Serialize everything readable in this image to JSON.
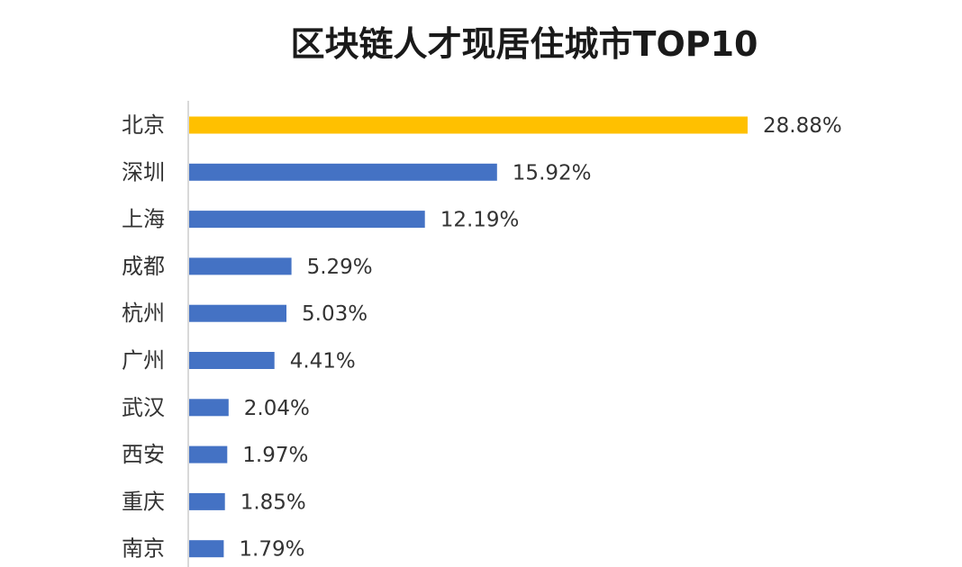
{
  "chart_data": {
    "type": "bar",
    "orientation": "horizontal",
    "title": "区块链人才现居住城市TOP10",
    "categories": [
      "北京",
      "深圳",
      "上海",
      "成都",
      "杭州",
      "广州",
      "武汉",
      "西安",
      "重庆",
      "南京"
    ],
    "values": [
      28.88,
      15.92,
      12.19,
      5.29,
      5.03,
      4.41,
      2.04,
      1.97,
      1.85,
      1.79
    ],
    "value_labels": [
      "28.88%",
      "15.92%",
      "12.19%",
      "5.29%",
      "5.03%",
      "4.41%",
      "2.04%",
      "1.97%",
      "1.85%",
      "1.79%"
    ],
    "xlim": [
      0,
      28.88
    ],
    "grid": false,
    "legend": "none",
    "colors": {
      "highlight": "#FFC000",
      "bar": "#4472C4",
      "axis": "#D9D9D9",
      "text": "#333333",
      "title": "#1A1A1A"
    },
    "highlight_index": 0
  }
}
